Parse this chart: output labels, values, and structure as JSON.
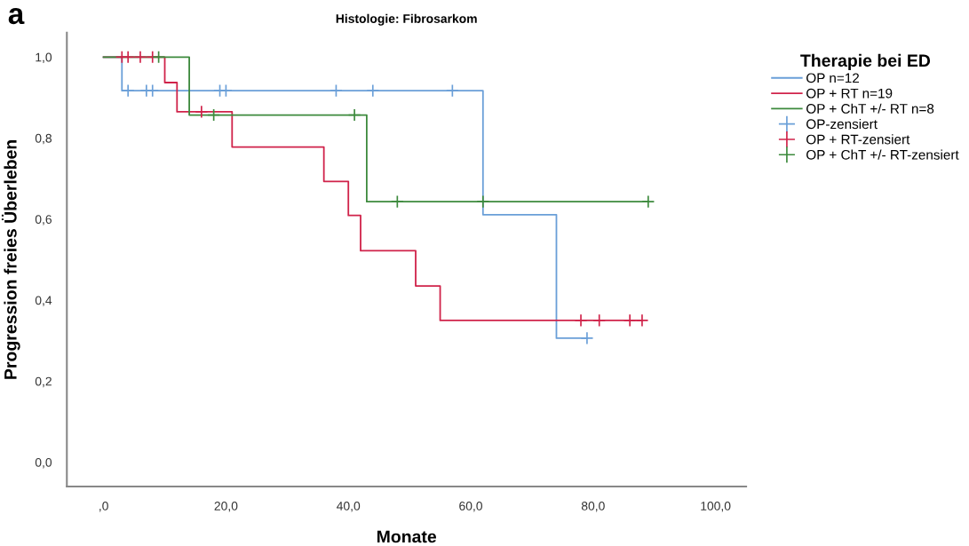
{
  "chart_data": {
    "type": "step",
    "title": "Histologie: Fibrosarkom",
    "xlabel": "Monate",
    "ylabel": "Progression freies Überleben",
    "legend_title": "Therapie bei ED",
    "annotations": [
      "a"
    ],
    "series": [
      {
        "name": "OP n=12",
        "color": "#6a9fd8",
        "x": [
          0,
          3,
          62,
          74,
          79
        ],
        "values": [
          1.0,
          0.917,
          0.611,
          0.306,
          0.306
        ]
      },
      {
        "name": "OP + RT n=19",
        "color": "#d0234a",
        "x": [
          0,
          10,
          12,
          21,
          36,
          40,
          42,
          51,
          55,
          88
        ],
        "values": [
          1.0,
          0.937,
          0.865,
          0.778,
          0.693,
          0.609,
          0.522,
          0.435,
          0.35,
          0.35
        ]
      },
      {
        "name": "OP + ChT +/- RT n=8",
        "color": "#3d8a3d",
        "x": [
          0,
          14,
          43,
          89
        ],
        "values": [
          1.0,
          0.857,
          0.643,
          0.643
        ]
      },
      {
        "name": "OP-zensiert",
        "type": "scatter",
        "marker": "cross",
        "color": "#6a9fd8",
        "x": [
          4,
          7,
          8,
          19,
          20,
          38,
          44,
          57,
          79
        ],
        "values": [
          0.917,
          0.917,
          0.917,
          0.917,
          0.917,
          0.917,
          0.917,
          0.917,
          0.306
        ]
      },
      {
        "name": "OP + RT-zensiert",
        "type": "scatter",
        "marker": "cross",
        "color": "#d0234a",
        "x": [
          3,
          4,
          6,
          8,
          16,
          78,
          81,
          86,
          88
        ],
        "values": [
          1.0,
          1.0,
          1.0,
          1.0,
          0.865,
          0.35,
          0.35,
          0.35,
          0.35
        ]
      },
      {
        "name": "OP + ChT +/- RT-zensiert",
        "type": "scatter",
        "marker": "cross",
        "color": "#3d8a3d",
        "x": [
          9,
          18,
          41,
          48,
          62,
          89
        ],
        "values": [
          1.0,
          0.857,
          0.857,
          0.643,
          0.643,
          0.643
        ]
      }
    ],
    "xlim": [
      -6,
      105
    ],
    "ylim": [
      -0.06,
      1.06
    ],
    "xticks": [
      {
        "value": 0,
        "label": ",0"
      },
      {
        "value": 20,
        "label": "20,0"
      },
      {
        "value": 40,
        "label": "40,0"
      },
      {
        "value": 60,
        "label": "60,0"
      },
      {
        "value": 80,
        "label": "80,0"
      },
      {
        "value": 100,
        "label": "100,0"
      }
    ],
    "yticks": [
      {
        "value": 0,
        "label": "0,0"
      },
      {
        "value": 0.2,
        "label": "0,2"
      },
      {
        "value": 0.4,
        "label": "0,4"
      },
      {
        "value": 0.6,
        "label": "0,6"
      },
      {
        "value": 0.8,
        "label": "0,8"
      },
      {
        "value": 1.0,
        "label": "1,0"
      }
    ],
    "grid": false,
    "legend": "right"
  }
}
